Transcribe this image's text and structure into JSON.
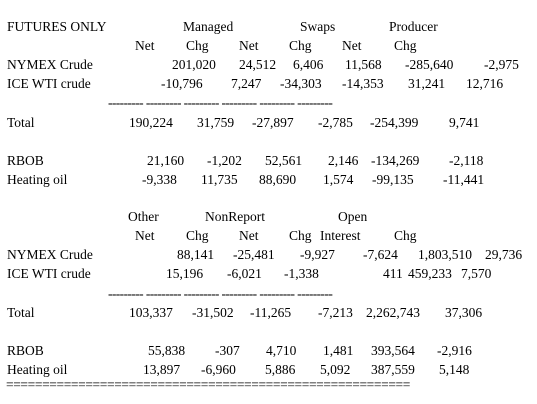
{
  "header1": {
    "section_title": "FUTURES ONLY",
    "managed": "Managed",
    "swaps": "Swaps",
    "producer": "Producer",
    "subheaders": [
      "Net",
      "Chg",
      "Net",
      "Chg",
      "Net",
      "Chg"
    ]
  },
  "block1": {
    "rows": [
      {
        "label": "NYMEX Crude",
        "values": [
          "201,020",
          "24,512",
          "6,406",
          "11,568",
          "-285,640",
          "-2,975"
        ]
      },
      {
        "label": "ICE WTI crude",
        "values": [
          "-10,796",
          "7,247",
          "-34,303",
          "-14,353",
          "31,241",
          "12,716"
        ]
      }
    ],
    "separator": "--------- --------- --------- --------- --------- ---------",
    "total": {
      "label": "Total",
      "values": [
        "190,224",
        "31,759",
        "-27,897",
        "-2,785",
        "-254,399",
        "9,741"
      ]
    },
    "products": [
      {
        "label": "RBOB",
        "values": [
          "21,160",
          "-1,202",
          "52,561",
          "2,146",
          "-134,269",
          "-2,118"
        ]
      },
      {
        "label": "Heating oil",
        "values": [
          "-9,338",
          "11,735",
          "88,690",
          "1,574",
          "-99,135",
          "-11,441"
        ]
      }
    ]
  },
  "header2": {
    "other": "Other",
    "nonreport": "NonReport",
    "open": "Open",
    "subheaders": [
      "Net",
      "Chg",
      "Net",
      "Chg",
      "Interest",
      "Chg"
    ]
  },
  "block2": {
    "rows": [
      {
        "label": "NYMEX Crude",
        "values": [
          "88,141",
          "-25,481",
          "-9,927",
          "-7,624",
          "1,803,510",
          "29,736"
        ]
      },
      {
        "label": "ICE WTI crude",
        "values": [
          "15,196",
          "-6,021",
          "-1,338",
          "411",
          "459,233",
          "7,570"
        ]
      }
    ],
    "separator": "--------- --------- --------- --------- --------- ---------",
    "total": {
      "label": "Total",
      "values": [
        "103,337",
        "-31,502",
        "-11,265",
        "-7,213",
        "2,262,743",
        "37,306"
      ]
    },
    "products": [
      {
        "label": "RBOB",
        "values": [
          "55,838",
          "-307",
          "4,710",
          "1,481",
          "393,564",
          "-2,916"
        ]
      },
      {
        "label": "Heating oil",
        "values": [
          "13,897",
          "-6,960",
          "5,886",
          "5,092",
          "387,559",
          "5,148"
        ]
      }
    ]
  },
  "footer_rule": "========================================================"
}
